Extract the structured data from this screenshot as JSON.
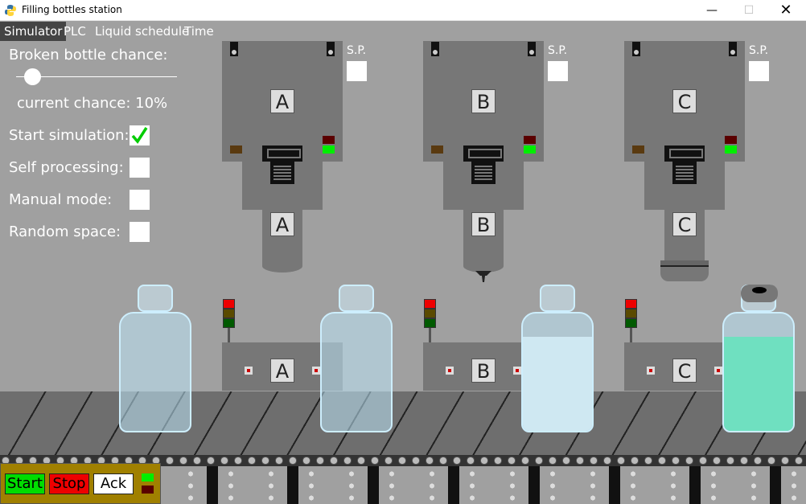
{
  "window": {
    "title": "Filling bottles station",
    "icon": "python-icon"
  },
  "menu": {
    "items": [
      {
        "label": "Simulator",
        "active": true
      },
      {
        "label": "PLC",
        "active": false
      },
      {
        "label": "Liquid schedule",
        "active": false
      },
      {
        "label": "Time",
        "active": false
      }
    ]
  },
  "panel": {
    "broken_label": "Broken bottle chance:",
    "current_label": "current chance: 10%",
    "broken_chance_percent": 10,
    "options": [
      {
        "label": "Start simulation:",
        "checked": true
      },
      {
        "label": "Self processing:",
        "checked": false
      },
      {
        "label": "Manual mode:",
        "checked": false
      },
      {
        "label": "Random space:",
        "checked": false
      }
    ]
  },
  "machines": [
    {
      "letter": "A",
      "sp_label": "S.P."
    },
    {
      "letter": "B",
      "sp_label": "S.P."
    },
    {
      "letter": "C",
      "sp_label": "S.P."
    }
  ],
  "stations": [
    {
      "letter": "A"
    },
    {
      "letter": "B"
    },
    {
      "letter": "C"
    }
  ],
  "bottles": [
    {
      "fill": 0,
      "color": "#bfe6f7",
      "capped": false
    },
    {
      "fill": 0,
      "color": "#bfe6f7",
      "capped": false
    },
    {
      "fill": 0.8,
      "color": "#cfe8f2",
      "capped": false
    },
    {
      "fill": 0.8,
      "color": "#6fe0c0",
      "capped": true
    }
  ],
  "controls": {
    "start_label": "Start",
    "stop_label": "Stop",
    "ack_label": "Ack"
  },
  "colors": {
    "check": "#00cc00",
    "led_on": "#00ee00",
    "led_off": "#5a0000"
  }
}
